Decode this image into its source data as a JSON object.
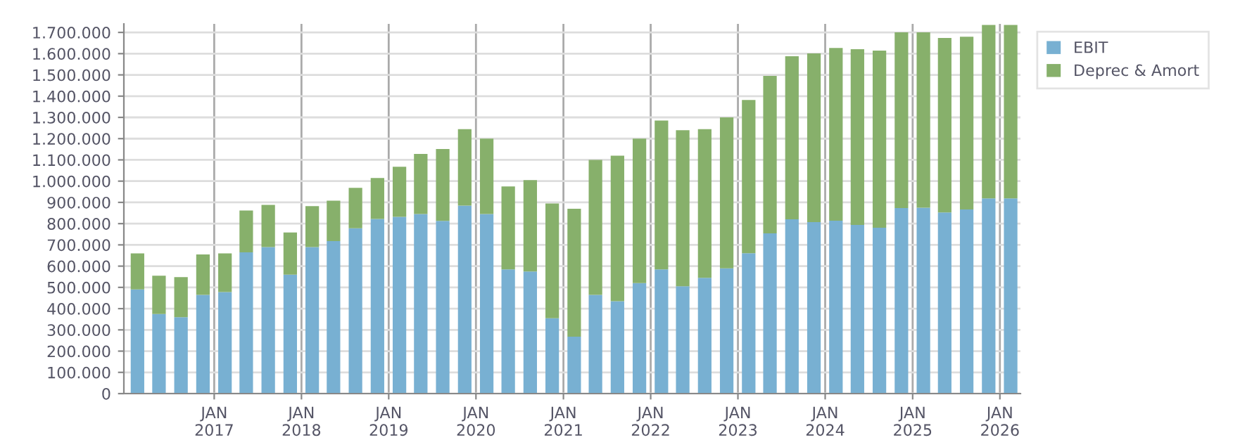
{
  "chart_data": {
    "type": "bar",
    "stacked": true,
    "grid": true,
    "legend": "top right",
    "x": [
      "2016-02-15",
      "2016-05-15",
      "2016-08-15",
      "2016-11-15",
      "2017-02-15",
      "2017-05-15",
      "2017-08-15",
      "2017-11-15",
      "2018-02-15",
      "2018-05-15",
      "2018-08-15",
      "2018-11-15",
      "2019-02-15",
      "2019-05-15",
      "2019-08-15",
      "2019-11-15",
      "2020-02-15",
      "2020-05-15",
      "2020-08-15",
      "2020-11-15",
      "2021-02-15",
      "2021-05-15",
      "2021-08-15",
      "2021-11-15",
      "2022-02-15",
      "2022-05-15",
      "2022-08-15",
      "2022-11-15",
      "2023-02-15",
      "2023-05-15",
      "2023-08-15",
      "2023-11-15",
      "2024-02-15",
      "2024-05-15",
      "2024-08-15",
      "2024-11-15",
      "2025-02-15",
      "2025-05-15",
      "2025-08-15",
      "2025-11-15",
      "2026-02-15"
    ],
    "series": [
      {
        "name": "EBIT",
        "color": "#78b0d2",
        "values": [
          490000,
          375000,
          360000,
          465000,
          478000,
          665000,
          690000,
          560000,
          690000,
          718000,
          778000,
          822000,
          832000,
          845000,
          813000,
          885000,
          845000,
          585000,
          575000,
          355000,
          268000,
          465000,
          435000,
          520000,
          585000,
          505000,
          545000,
          590000,
          661000,
          754000,
          820000,
          807000,
          814000,
          794000,
          781000,
          873000,
          875000,
          853000,
          867000,
          919000,
          919000
        ]
      },
      {
        "name": "Deprec & Amort",
        "color": "#87b06b",
        "values": [
          170000,
          180000,
          188000,
          190000,
          182000,
          197000,
          198000,
          198000,
          192000,
          190000,
          190000,
          193000,
          236000,
          283000,
          338000,
          360000,
          355000,
          390000,
          430000,
          540000,
          602000,
          635000,
          685000,
          680000,
          700000,
          735000,
          700000,
          710000,
          721000,
          741000,
          768000,
          794000,
          813000,
          827000,
          833000,
          827000,
          825000,
          821000,
          813000,
          816000,
          816000
        ]
      }
    ],
    "xlim": [
      "2015-12-20",
      "2026-03-28"
    ],
    "xticks": [
      {
        "value": "2017-01-01",
        "label": "JAN\n2017"
      },
      {
        "value": "2018-01-01",
        "label": "JAN\n2018"
      },
      {
        "value": "2019-01-01",
        "label": "JAN\n2019"
      },
      {
        "value": "2020-01-01",
        "label": "JAN\n2020"
      },
      {
        "value": "2021-01-01",
        "label": "JAN\n2021"
      },
      {
        "value": "2022-01-01",
        "label": "JAN\n2022"
      },
      {
        "value": "2023-01-01",
        "label": "JAN\n2023"
      },
      {
        "value": "2024-01-01",
        "label": "JAN\n2024"
      },
      {
        "value": "2025-01-01",
        "label": "JAN\n2025"
      },
      {
        "value": "2026-01-01",
        "label": "JAN\n2026"
      }
    ],
    "ylim": [
      0,
      1740000
    ],
    "yticks": [
      0,
      {
        "value": 100000,
        "label": "100.000"
      },
      {
        "value": 200000,
        "label": "200.000"
      },
      {
        "value": 300000,
        "label": "300.000"
      },
      {
        "value": 400000,
        "label": "400.000"
      },
      {
        "value": 500000,
        "label": "500.000"
      },
      {
        "value": 600000,
        "label": "600.000"
      },
      {
        "value": 700000,
        "label": "700.000"
      },
      {
        "value": 800000,
        "label": "800.000"
      },
      {
        "value": 900000,
        "label": "900.000"
      },
      {
        "value": 1000000,
        "label": "1.000.000"
      },
      {
        "value": 1100000,
        "label": "1.100.000"
      },
      {
        "value": 1200000,
        "label": "1.200.000"
      },
      {
        "value": 1300000,
        "label": "1.300.000"
      },
      {
        "value": 1400000,
        "label": "1.400.000"
      },
      {
        "value": 1500000,
        "label": "1.500.000"
      },
      {
        "value": 1600000,
        "label": "1.600.000"
      },
      {
        "value": 1700000,
        "label": "1.700.000"
      }
    ]
  }
}
